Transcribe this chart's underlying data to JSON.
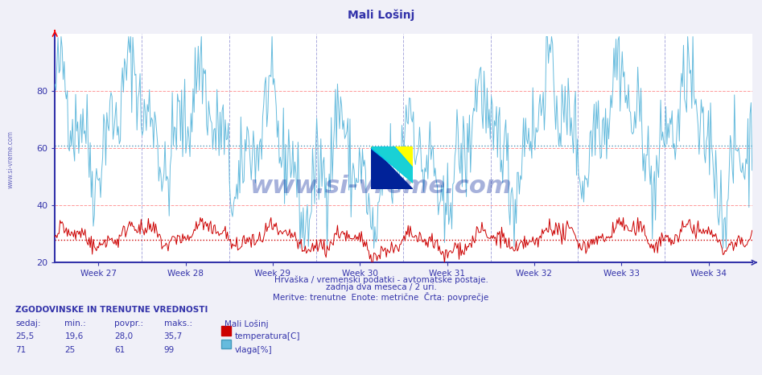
{
  "title": "Mali Lošinj",
  "bg_color": "#f0f0f8",
  "plot_bg_color": "#ffffff",
  "grid_color_h": "#ff9999",
  "grid_color_v": "#aaaadd",
  "weeks": [
    "Week 27",
    "Week 28",
    "Week 29",
    "Week 30",
    "Week 31",
    "Week 32",
    "Week 33",
    "Week 34"
  ],
  "ylim": [
    20,
    100
  ],
  "yticks": [
    20,
    40,
    60,
    80
  ],
  "temp_color": "#cc0000",
  "humidity_color": "#66bbdd",
  "avg_temp": 28.0,
  "avg_humidity": 61,
  "temp_min": 19.6,
  "temp_max": 35.7,
  "temp_current": 25.5,
  "hum_min": 25,
  "hum_max": 99,
  "hum_current": 71,
  "subtitle1": "Hrvaška / vremenski podatki - avtomatske postaje.",
  "subtitle2": "zadnja dva meseca / 2 uri.",
  "subtitle3": "Meritve: trenutne  Enote: metrične  Črta: povprečje",
  "bottom_title": "ZGODOVINSKE IN TRENUTNE VREDNOSTI",
  "col_sedaj": "sedaj:",
  "col_min": "min.:",
  "col_povpr": "povpr.:",
  "col_maks": "maks.:",
  "station": "Mali Lošinj",
  "label_temp": "temperatura[C]",
  "label_hum": "vlaga[%]",
  "watermark": "www.si-vreme.com",
  "side_label": "www.si-vreme.com",
  "n_points": 672
}
